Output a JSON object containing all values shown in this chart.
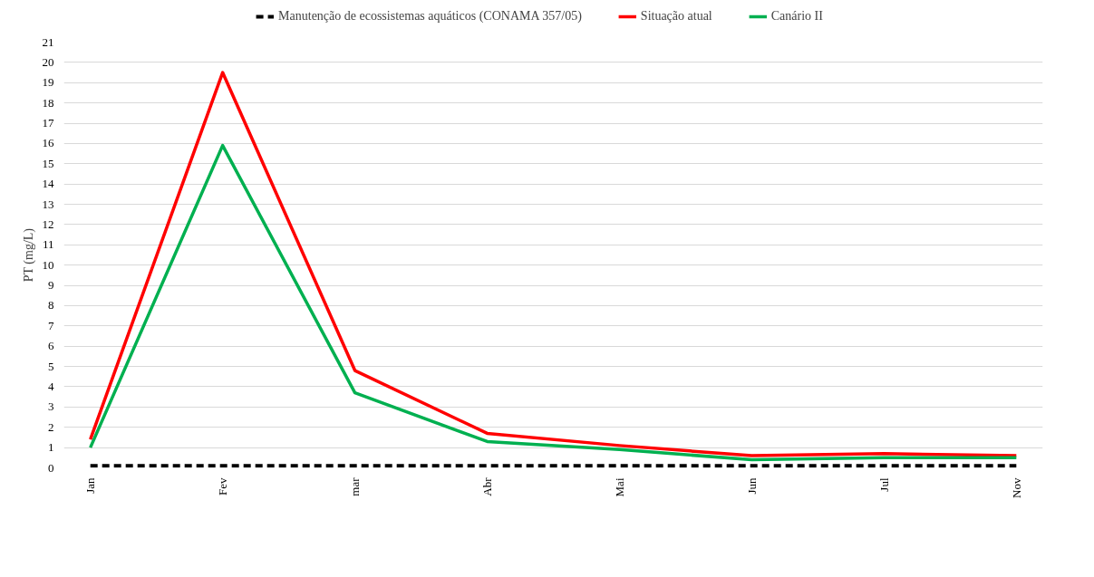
{
  "chart_data": {
    "type": "line",
    "ylabel": "PT (mg/L)",
    "categories": [
      "Jan",
      "Fev",
      "mar",
      "Abr",
      "Mai",
      "Jun",
      "Jul",
      "Nov"
    ],
    "series": [
      {
        "name": "Manutenção de ecossistemas aquáticos (CONAMA 357/05)",
        "color": "#000000",
        "line_style": "dashed",
        "values": [
          0.1,
          0.1,
          0.1,
          0.1,
          0.1,
          0.1,
          0.1,
          0.1
        ]
      },
      {
        "name": "Situação atual",
        "color": "#ff0000",
        "line_style": "solid",
        "values": [
          1.4,
          19.5,
          4.8,
          1.7,
          1.1,
          0.6,
          0.7,
          0.6
        ]
      },
      {
        "name": "Canário II",
        "color": "#00b050",
        "line_style": "solid",
        "values": [
          1.0,
          15.9,
          3.7,
          1.3,
          0.9,
          0.4,
          0.5,
          0.5
        ]
      }
    ],
    "ylim": [
      0,
      21
    ],
    "yticks": [
      0,
      1,
      2,
      3,
      4,
      5,
      6,
      7,
      8,
      9,
      10,
      11,
      12,
      13,
      14,
      15,
      16,
      17,
      18,
      19,
      20,
      21
    ],
    "grid": "y",
    "legend": "top",
    "marker": "none"
  }
}
